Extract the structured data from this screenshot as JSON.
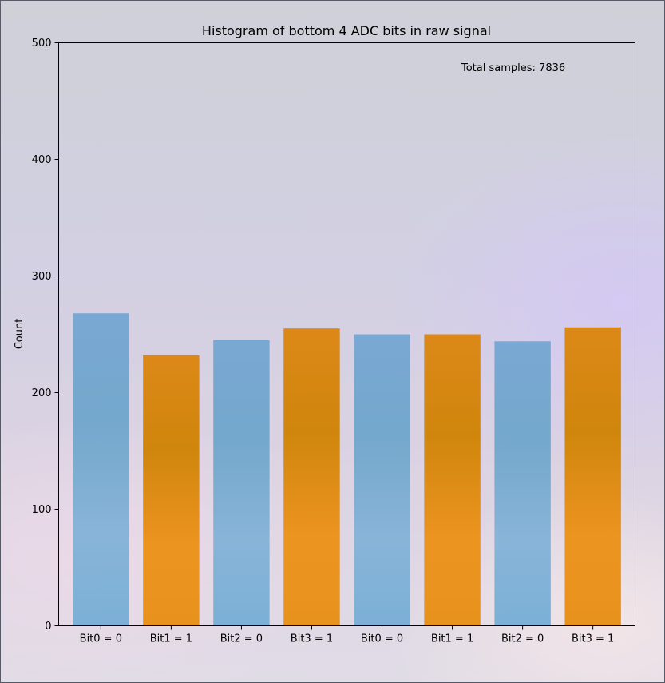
{
  "chart_data": {
    "type": "bar",
    "title": "Histogram of bottom 4 ADC bits in raw signal",
    "xlabel": "",
    "ylabel": "Count",
    "ylim": [
      0,
      500
    ],
    "yticks": [
      0,
      100,
      200,
      300,
      400,
      500
    ],
    "categories": [
      "Bit0 = 0",
      "Bit1 = 1",
      "Bit2 = 0",
      "Bit3 = 1",
      "Bit0 = 0",
      "Bit1 = 1",
      "Bit2 = 0",
      "Bit3 = 1"
    ],
    "values": [
      268,
      232,
      245,
      255,
      250,
      250,
      244,
      256
    ],
    "bar_colors": [
      "#7aaed6",
      "#e8911a",
      "#7aaed6",
      "#e8911a",
      "#7aaed6",
      "#e8911a",
      "#7aaed6",
      "#e8911a"
    ],
    "annotation": "Total samples: 7836",
    "grid": false,
    "legend": "none"
  }
}
